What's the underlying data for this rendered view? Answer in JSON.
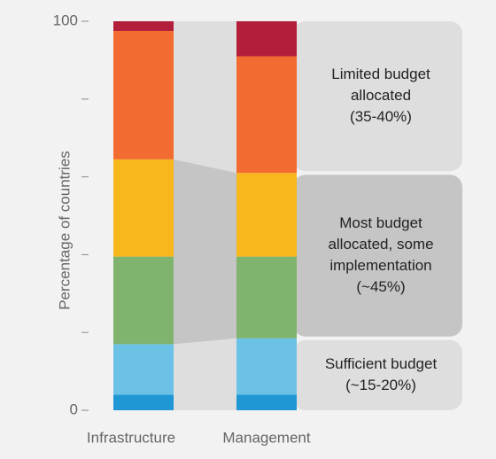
{
  "chart_data": {
    "type": "stacked_bar",
    "y_label": "Percentage of countries",
    "categories": [
      "Infrastructure",
      "Management"
    ],
    "series": [
      {
        "color": "#1f97d4",
        "values": [
          4,
          4
        ]
      },
      {
        "color": "#6bc2e6",
        "values": [
          13,
          14.5
        ]
      },
      {
        "color": "#80b36e",
        "values": [
          22.5,
          21
        ]
      },
      {
        "color": "#f7b71d",
        "values": [
          25,
          21.5
        ]
      },
      {
        "color": "#f26b30",
        "values": [
          33,
          30
        ]
      },
      {
        "color": "#b11f3a",
        "values": [
          2.5,
          9
        ]
      }
    ],
    "ylim": [
      0,
      100
    ],
    "yticks": [
      0,
      {
        "value": 20,
        "label": null
      },
      {
        "value": 40,
        "label": null
      },
      {
        "value": 60,
        "label": null
      },
      {
        "value": 80,
        "label": null
      },
      100
    ],
    "annotations": [
      [
        "Limited budget",
        "allocated",
        "(35-40%)"
      ],
      [
        "Most budget",
        "allocated, some",
        "implementation",
        "(~45%)"
      ],
      [
        "Sufficient budget",
        "(~15-20%)"
      ]
    ]
  }
}
